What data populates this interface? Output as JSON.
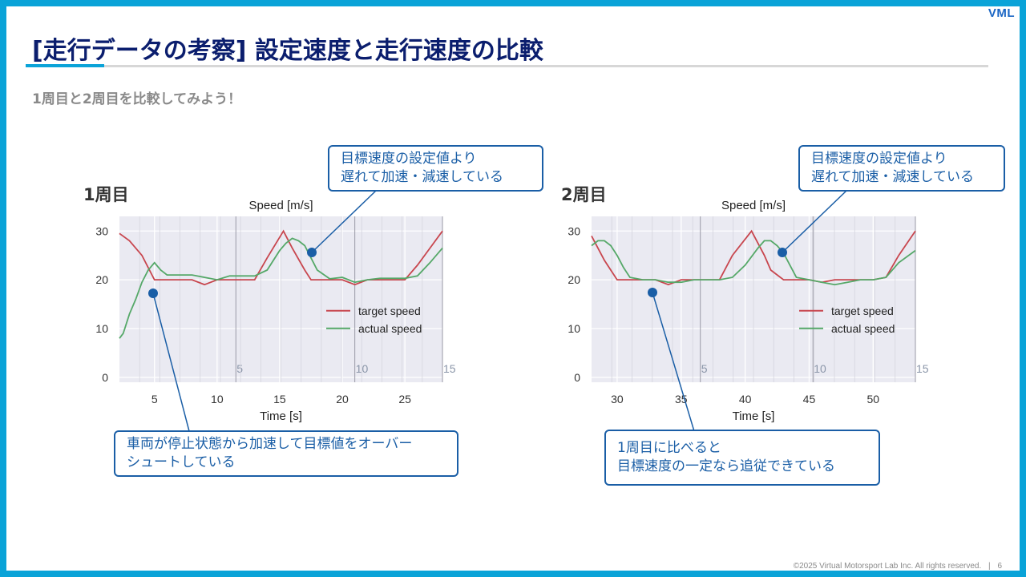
{
  "slide": {
    "logo": "VML",
    "title": "[走行データの考察] 設定速度と走行速度の比較",
    "subtitle": "1周目と2周目を比較してみよう！",
    "footer_copyright": "©2025 Virtual Motorsport Lab Inc. All rights reserved.",
    "footer_separator": "|",
    "page_number": "6"
  },
  "laps": [
    {
      "label": "1周目",
      "callout_top": "目標速度の設定値より\n遅れて加速・減速している",
      "callout_bottom": "車両が停止状態から加速して目標値をオーバー\nシュートしている"
    },
    {
      "label": "2周目",
      "callout_top": "目標速度の設定値より\n遅れて加速・減速している",
      "callout_bottom": "1周目に比べると\n目標速度の一定なら追従できている"
    }
  ],
  "colors": {
    "frame": "#0aa3d8",
    "title": "#0b1e6e",
    "callout": "#1a5ea6",
    "target": "#c8464e",
    "actual": "#55a868",
    "plot_bg": "#eaeaf2"
  },
  "chart_data": [
    {
      "type": "line",
      "title": "Speed [m/s]",
      "xlabel": "Time [s]",
      "ylabel": "",
      "xlim": [
        2.2,
        28
      ],
      "ylim": [
        -1,
        33
      ],
      "xticks": [
        5,
        10,
        15,
        20,
        25
      ],
      "yticks": [
        0,
        10,
        20,
        30
      ],
      "grid": true,
      "legend": "center-right",
      "lap_markers": [
        {
          "x": 11.5,
          "label": "5"
        },
        {
          "x": 21.0,
          "label": "10"
        },
        {
          "x": 28.0,
          "label": "15"
        }
      ],
      "series": [
        {
          "name": "target speed",
          "x": [
            2.2,
            3,
            4,
            5,
            6,
            7,
            8,
            9,
            10,
            11,
            12,
            13,
            14,
            15.3,
            16,
            17,
            17.5,
            18,
            19,
            20,
            21,
            22,
            23,
            24,
            25,
            26,
            27,
            28
          ],
          "values": [
            29.5,
            28,
            25,
            20,
            20,
            20,
            20,
            19,
            20,
            20,
            20,
            20,
            24.5,
            30,
            26.5,
            22,
            20,
            20,
            20,
            20,
            19,
            20,
            20,
            20,
            20,
            23,
            26.5,
            30
          ]
        },
        {
          "name": "actual speed",
          "x": [
            2.2,
            2.5,
            3,
            3.5,
            4,
            4.5,
            5,
            5.5,
            6,
            7,
            8,
            9,
            10,
            11,
            12,
            13,
            14,
            15,
            15.5,
            16,
            16.5,
            17,
            17.5,
            18,
            19,
            20,
            21,
            22,
            23,
            24,
            25,
            26,
            27,
            28
          ],
          "values": [
            8,
            9,
            13,
            16,
            19.5,
            22,
            23.5,
            22,
            21,
            21,
            21,
            20.5,
            20,
            20.8,
            20.8,
            20.8,
            22,
            26,
            27.5,
            28.5,
            28,
            27,
            24.5,
            22,
            20.2,
            20.5,
            19.5,
            20,
            20.3,
            20.3,
            20.3,
            20.8,
            23.5,
            26.5
          ]
        }
      ]
    },
    {
      "type": "line",
      "title": "Speed [m/s]",
      "xlabel": "Time [s]",
      "ylabel": "",
      "xlim": [
        28,
        53.3
      ],
      "ylim": [
        -1,
        33
      ],
      "xticks": [
        30,
        35,
        40,
        45,
        50
      ],
      "yticks": [
        0,
        10,
        20,
        30
      ],
      "grid": true,
      "legend": "center-right",
      "lap_markers": [
        {
          "x": 36.5,
          "label": "5"
        },
        {
          "x": 45.3,
          "label": "10"
        },
        {
          "x": 53.3,
          "label": "15"
        }
      ],
      "series": [
        {
          "name": "target speed",
          "x": [
            28,
            29,
            30,
            31,
            32,
            33,
            34,
            35,
            36,
            37,
            38,
            39,
            40.5,
            41.5,
            42,
            43,
            44,
            45,
            46,
            47,
            48,
            49,
            50,
            51,
            52,
            53.3
          ],
          "values": [
            29,
            24,
            20,
            20,
            20,
            20,
            19,
            20,
            20,
            20,
            20,
            25,
            30,
            25,
            22,
            20,
            20,
            20,
            19.5,
            20,
            20,
            20,
            20,
            20.5,
            25,
            30
          ]
        },
        {
          "name": "actual speed",
          "x": [
            28,
            28.5,
            29,
            29.5,
            30,
            30.5,
            31,
            32,
            33,
            34,
            35,
            36,
            37,
            38,
            39,
            40,
            41,
            41.5,
            42,
            42.5,
            43,
            43.5,
            44,
            45,
            46,
            47,
            48,
            49,
            50,
            51,
            52,
            53.3
          ],
          "values": [
            27,
            28,
            28,
            27,
            25,
            22.5,
            20.5,
            20,
            20,
            19.5,
            19.5,
            20,
            20,
            20,
            20.5,
            23,
            26.5,
            28,
            28,
            27,
            25.5,
            23,
            20.5,
            20,
            19.5,
            19,
            19.5,
            20,
            20,
            20.5,
            23.5,
            26
          ]
        }
      ]
    }
  ]
}
